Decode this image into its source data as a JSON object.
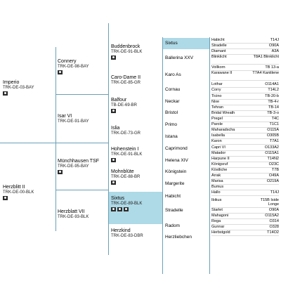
{
  "gen1": [
    {
      "name": "Imperio",
      "reg": "TRK-DE-03-BAY"
    },
    {
      "name": "Herzblitt II",
      "reg": "TRK-DE-00-BLK"
    }
  ],
  "gen2": [
    {
      "name": "Connery",
      "reg": "TRK-DE-98-BAY"
    },
    {
      "name": "Isar VI",
      "reg": "TRK-DE-91-BAY"
    },
    {
      "name": "Münchhausen TSF",
      "reg": "TRK-DE-95-BAY"
    },
    {
      "name": "Herzblatt VII",
      "reg": "TRK-DE-93-BLK"
    }
  ],
  "gen3": [
    {
      "name": "Buddenbrock",
      "reg": "TRK-DE-91-BLK"
    },
    {
      "name": "Caro-Dame II",
      "reg": "TRK-DE-85-GR"
    },
    {
      "name": "Balfour",
      "reg": "TB-DE-69-BR"
    },
    {
      "name": "Islia",
      "reg": "TRK-DE-73-GR"
    },
    {
      "name": "Hohenstein I",
      "reg": "TRK-DE-91-BLK"
    },
    {
      "name": "Mohnblüte",
      "reg": "TRK-DE-88-BR"
    },
    {
      "name": "Sixtus",
      "reg": "TRK-DE-89-BLK"
    },
    {
      "name": "Herzkind",
      "reg": "TRK-DE-83-DBR"
    }
  ],
  "gen4": [
    "Sixtus",
    "Ballerina XXV",
    "Karo As",
    "Cornau",
    "Neckar",
    "Bristol",
    "Primo",
    "Istana",
    "Caprimond",
    "Helena XIV",
    "Königstein",
    "Margerite",
    "Habicht",
    "Stradelle",
    "Radom",
    "Herzliebchen"
  ],
  "gen5": [
    {
      "name": "Habicht",
      "reg": "T14J"
    },
    {
      "name": "Stradelle",
      "reg": "O90A"
    },
    {
      "name": "Diamant",
      "reg": "A3A"
    },
    {
      "name": "Blinklicht",
      "reg": "T8A1 Blinklicht"
    },
    {
      "name": "Vollkorn",
      "reg": "TB 13-a"
    },
    {
      "name": "Karawane II",
      "reg": "T7A4 Kantilene"
    },
    {
      "name": "Lothar",
      "reg": "O114A1"
    },
    {
      "name": "Corry",
      "reg": "T14L2"
    },
    {
      "name": "Ticino",
      "reg": "TB-20-b"
    },
    {
      "name": "Nixe",
      "reg": "TB-4-r"
    },
    {
      "name": "Tehran",
      "reg": "TB-14"
    },
    {
      "name": "Bridal Wreath",
      "reg": "TB-3-o"
    },
    {
      "name": "Pregel",
      "reg": "T4C"
    },
    {
      "name": "Parole",
      "reg": "T1C1"
    },
    {
      "name": "Maharadscha",
      "reg": "O115A"
    },
    {
      "name": "Isabella",
      "reg": "O305B"
    },
    {
      "name": "Karon",
      "reg": "T7A1"
    },
    {
      "name": "Capri VI",
      "reg": "O133A2"
    },
    {
      "name": "Matador",
      "reg": "O115A1"
    },
    {
      "name": "Harpune II",
      "reg": "T14N2"
    },
    {
      "name": "Königsruf",
      "reg": "O23C"
    },
    {
      "name": "Köstliche",
      "reg": "T7B"
    },
    {
      "name": "Arrak",
      "reg": "O49A"
    },
    {
      "name": "Marisa",
      "reg": "O219A"
    },
    {
      "name": "Bumus",
      "reg": ""
    },
    {
      "name": "Hallo",
      "reg": "T14J"
    },
    {
      "name": "Ibikus",
      "reg": "T15B Iside Longe"
    },
    {
      "name": "Starlet",
      "reg": "O90A"
    },
    {
      "name": "Mahagoni",
      "reg": "O115A2"
    },
    {
      "name": "Rega",
      "reg": "O314"
    },
    {
      "name": "Gunnar",
      "reg": "O328"
    },
    {
      "name": "Herbstgold",
      "reg": "T14O2"
    }
  ],
  "colors": {
    "highlight": "#aed9e6",
    "line": "#6aa0b8",
    "icon": "#2b2b2b"
  },
  "icons": {
    "photo": "camera-icon",
    "gallery": "gallery-icon"
  }
}
